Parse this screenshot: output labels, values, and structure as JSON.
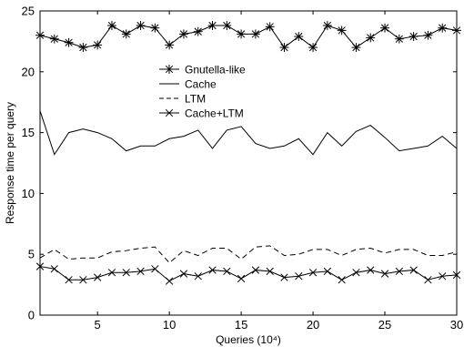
{
  "chart_data": {
    "type": "line",
    "title": "",
    "xlabel": "Queries (10⁴)",
    "ylabel": "Response time per query",
    "xlim": [
      1,
      30
    ],
    "ylim": [
      0,
      25
    ],
    "xticks": [
      5,
      10,
      15,
      20,
      25,
      30
    ],
    "yticks": [
      0,
      5,
      10,
      15,
      20,
      25
    ],
    "grid": false,
    "legend_position": "upper-center",
    "x": [
      1,
      2,
      3,
      4,
      5,
      6,
      7,
      8,
      9,
      10,
      11,
      12,
      13,
      14,
      15,
      16,
      17,
      18,
      19,
      20,
      21,
      22,
      23,
      24,
      25,
      26,
      27,
      28,
      29,
      30
    ],
    "series": [
      {
        "name": "Gnutella-like",
        "style": "solid",
        "marker": "asterisk",
        "values": [
          23.0,
          22.7,
          22.4,
          22.0,
          22.2,
          23.8,
          23.1,
          23.8,
          23.6,
          22.2,
          23.1,
          23.3,
          23.8,
          23.8,
          23.1,
          23.1,
          23.7,
          22.0,
          22.9,
          22.0,
          23.8,
          23.4,
          22.0,
          22.8,
          23.6,
          22.7,
          22.9,
          23.0,
          23.6,
          23.4
        ]
      },
      {
        "name": "Cache",
        "style": "solid",
        "marker": "none",
        "values": [
          16.8,
          13.2,
          15.0,
          15.3,
          15.0,
          14.5,
          13.5,
          13.9,
          13.9,
          14.5,
          14.7,
          15.2,
          13.7,
          15.2,
          15.5,
          14.1,
          13.7,
          13.9,
          14.5,
          13.2,
          15.0,
          13.9,
          15.1,
          15.6,
          14.6,
          13.5,
          13.7,
          13.9,
          14.7,
          13.7
        ]
      },
      {
        "name": "LTM",
        "style": "dashed",
        "marker": "none",
        "values": [
          4.7,
          5.4,
          4.6,
          4.7,
          4.7,
          5.2,
          5.3,
          5.5,
          5.6,
          4.3,
          5.3,
          4.9,
          5.5,
          5.5,
          4.6,
          5.6,
          5.7,
          4.9,
          5.0,
          5.4,
          5.4,
          4.9,
          5.4,
          5.5,
          5.1,
          5.4,
          5.4,
          4.9,
          4.9,
          5.2
        ]
      },
      {
        "name": "Cache+LTM",
        "style": "solid",
        "marker": "x",
        "values": [
          4.0,
          3.8,
          2.9,
          2.9,
          3.1,
          3.5,
          3.5,
          3.6,
          3.8,
          2.8,
          3.4,
          3.2,
          3.7,
          3.6,
          3.0,
          3.7,
          3.6,
          3.1,
          3.2,
          3.5,
          3.6,
          2.9,
          3.5,
          3.7,
          3.4,
          3.6,
          3.7,
          2.9,
          3.2,
          3.3
        ]
      }
    ]
  }
}
